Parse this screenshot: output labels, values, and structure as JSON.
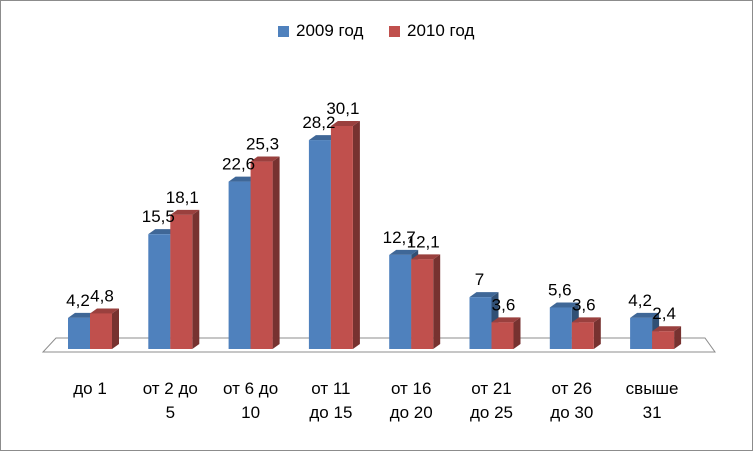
{
  "chart_data": {
    "type": "bar",
    "title": "",
    "xlabel": "",
    "ylabel": "",
    "ylim": [
      0,
      30.1
    ],
    "grid": false,
    "legend_position": "top",
    "categories": [
      "до 1",
      "от 2 до 5",
      "от 6 до 10",
      "от 11 до 15",
      "от 16 до 20",
      "от 21 до 25",
      "от 26 до 30",
      "свыше 31"
    ],
    "category_lines": [
      [
        "до 1"
      ],
      [
        "от 2 до",
        "5"
      ],
      [
        "от 6 до",
        "10"
      ],
      [
        "от 11",
        "до 15"
      ],
      [
        "от 16",
        "до 20"
      ],
      [
        "от 21",
        "до 25"
      ],
      [
        "от 26",
        "до 30"
      ],
      [
        "свыше",
        "31"
      ]
    ],
    "series": [
      {
        "name": "2009 год",
        "color": "#4f81bd",
        "values": [
          4.2,
          15.5,
          22.6,
          28.2,
          12.7,
          7,
          5.6,
          4.2
        ],
        "labels": [
          "4,2",
          "15,5",
          "22,6",
          "28,2",
          "12,7",
          "7",
          "5,6",
          "4,2"
        ]
      },
      {
        "name": "2010 год",
        "color": "#c0504d",
        "values": [
          4.8,
          18.1,
          25.3,
          30.1,
          12.1,
          3.6,
          3.6,
          2.4
        ],
        "labels": [
          "4,8",
          "18,1",
          "25,3",
          "30,1",
          "12,1",
          "3,6",
          "3,6",
          "2,4"
        ]
      }
    ]
  }
}
